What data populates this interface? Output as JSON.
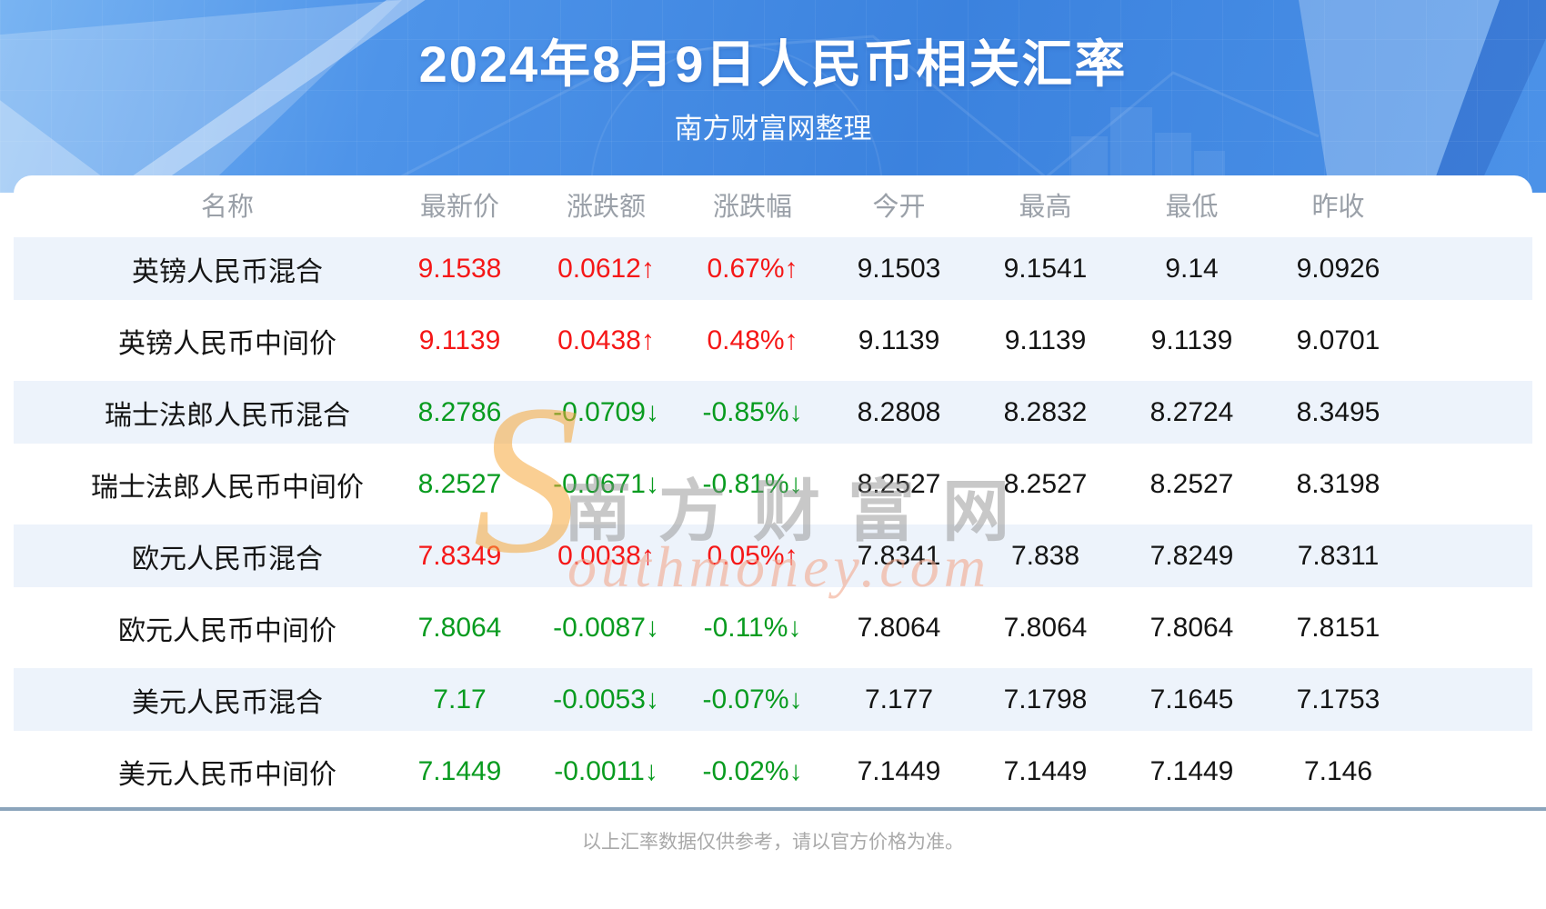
{
  "header": {
    "title": "2024年8月9日人民币相关汇率",
    "subtitle": "南方财富网整理"
  },
  "table": {
    "columns": [
      "名称",
      "最新价",
      "涨跌额",
      "涨跌幅",
      "今开",
      "最高",
      "最低",
      "昨收"
    ],
    "rows": [
      {
        "name": "英镑人民币混合",
        "latest": "9.1538",
        "change": "0.0612↑",
        "change_pct": "0.67%↑",
        "open": "9.1503",
        "high": "9.1541",
        "low": "9.14",
        "prev_close": "9.0926",
        "trend": "up"
      },
      {
        "name": "英镑人民币中间价",
        "latest": "9.1139",
        "change": "0.0438↑",
        "change_pct": "0.48%↑",
        "open": "9.1139",
        "high": "9.1139",
        "low": "9.1139",
        "prev_close": "9.0701",
        "trend": "up"
      },
      {
        "name": "瑞士法郎人民币混合",
        "latest": "8.2786",
        "change": "-0.0709↓",
        "change_pct": "-0.85%↓",
        "open": "8.2808",
        "high": "8.2832",
        "low": "8.2724",
        "prev_close": "8.3495",
        "trend": "down"
      },
      {
        "name": "瑞士法郎人民币中间价",
        "latest": "8.2527",
        "change": "-0.0671↓",
        "change_pct": "-0.81%↓",
        "open": "8.2527",
        "high": "8.2527",
        "low": "8.2527",
        "prev_close": "8.3198",
        "trend": "down"
      },
      {
        "name": "欧元人民币混合",
        "latest": "7.8349",
        "change": "0.0038↑",
        "change_pct": "0.05%↑",
        "open": "7.8341",
        "high": "7.838",
        "low": "7.8249",
        "prev_close": "7.8311",
        "trend": "up"
      },
      {
        "name": "欧元人民币中间价",
        "latest": "7.8064",
        "change": "-0.0087↓",
        "change_pct": "-0.11%↓",
        "open": "7.8064",
        "high": "7.8064",
        "low": "7.8064",
        "prev_close": "7.8151",
        "trend": "down"
      },
      {
        "name": "美元人民币混合",
        "latest": "7.17",
        "change": "-0.0053↓",
        "change_pct": "-0.07%↓",
        "open": "7.177",
        "high": "7.1798",
        "low": "7.1645",
        "prev_close": "7.1753",
        "trend": "down"
      },
      {
        "name": "美元人民币中间价",
        "latest": "7.1449",
        "change": "-0.0011↓",
        "change_pct": "-0.02%↓",
        "open": "7.1449",
        "high": "7.1449",
        "low": "7.1449",
        "prev_close": "7.146",
        "trend": "down"
      }
    ]
  },
  "chart_data": {
    "type": "table",
    "title": "2024年8月9日人民币相关汇率",
    "subtitle": "南方财富网整理",
    "columns": [
      "名称",
      "最新价",
      "涨跌额",
      "涨跌幅",
      "今开",
      "最高",
      "最低",
      "昨收"
    ],
    "rows": [
      [
        "英镑人民币混合",
        9.1538,
        0.0612,
        "0.67%",
        9.1503,
        9.1541,
        9.14,
        9.0926
      ],
      [
        "英镑人民币中间价",
        9.1139,
        0.0438,
        "0.48%",
        9.1139,
        9.1139,
        9.1139,
        9.0701
      ],
      [
        "瑞士法郎人民币混合",
        8.2786,
        -0.0709,
        "-0.85%",
        8.2808,
        8.2832,
        8.2724,
        8.3495
      ],
      [
        "瑞士法郎人民币中间价",
        8.2527,
        -0.0671,
        "-0.81%",
        8.2527,
        8.2527,
        8.2527,
        8.3198
      ],
      [
        "欧元人民币混合",
        7.8349,
        0.0038,
        "0.05%",
        7.8341,
        7.838,
        7.8249,
        7.8311
      ],
      [
        "欧元人民币中间价",
        7.8064,
        -0.0087,
        "-0.11%",
        7.8064,
        7.8064,
        7.8064,
        7.8151
      ],
      [
        "美元人民币混合",
        7.17,
        -0.0053,
        "-0.07%",
        7.177,
        7.1798,
        7.1645,
        7.1753
      ],
      [
        "美元人民币中间价",
        7.1449,
        -0.0011,
        "-0.02%",
        7.1449,
        7.1449,
        7.1449,
        7.146
      ]
    ]
  },
  "watermark": {
    "s_glyph": "S",
    "cn_text": "南方财富网",
    "en_text": "outhmoney.com"
  },
  "footer": {
    "disclaimer": "以上汇率数据仅供参考，请以官方价格为准。"
  },
  "colors": {
    "up_red": "#f51717",
    "down_green": "#089b1f",
    "stripe_blue": "#edf3fb",
    "divider_slate": "#8ba4bb",
    "banner_blue": "#4489e4"
  }
}
